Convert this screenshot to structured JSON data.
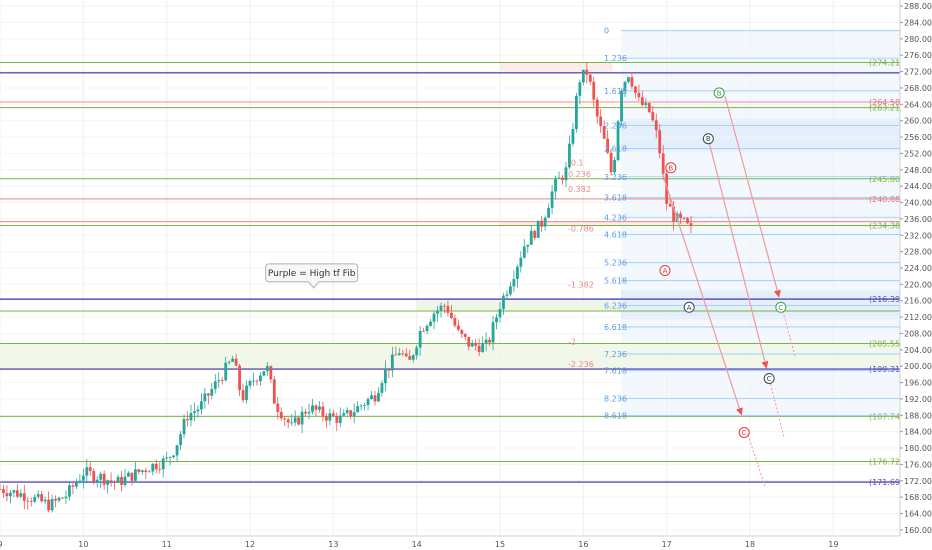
{
  "chart_data": {
    "type": "candlestick",
    "x_axis": {
      "ticks": [
        {
          "day": 9,
          "label": "9"
        },
        {
          "day": 10,
          "label": "10"
        },
        {
          "day": 11,
          "label": "11"
        },
        {
          "day": 12,
          "label": "12"
        },
        {
          "day": 13,
          "label": "13"
        },
        {
          "day": 14,
          "label": "14"
        },
        {
          "day": 15,
          "label": "15"
        },
        {
          "day": 16,
          "label": "16"
        },
        {
          "day": 17,
          "label": "17"
        },
        {
          "day": 18,
          "label": "18"
        },
        {
          "day": 19,
          "label": "19"
        }
      ],
      "range": [
        9,
        19.8
      ]
    },
    "y_axis": {
      "ticks": [
        "160.00",
        "164.00",
        "168.00",
        "172.00",
        "176.00",
        "180.00",
        "184.00",
        "188.00",
        "192.00",
        "196.00",
        "200.00",
        "204.00",
        "208.00",
        "212.00",
        "216.00",
        "220.00",
        "224.00",
        "228.00",
        "232.00",
        "236.00",
        "240.00",
        "244.00",
        "248.00",
        "252.00",
        "256.00",
        "260.00",
        "264.00",
        "268.00",
        "272.00",
        "276.00",
        "280.00",
        "284.00",
        "288.00"
      ],
      "range": [
        158.5,
        289.5
      ]
    },
    "price_path": [
      [
        9.0,
        170.0
      ],
      [
        9.3,
        168.5
      ],
      [
        9.6,
        166.0
      ],
      [
        9.8,
        168.5
      ],
      [
        10.0,
        174.0
      ],
      [
        10.2,
        173.0
      ],
      [
        10.4,
        171.5
      ],
      [
        10.6,
        173.5
      ],
      [
        10.8,
        175.5
      ],
      [
        11.0,
        177.0
      ],
      [
        11.1,
        180.0
      ],
      [
        11.25,
        188.0
      ],
      [
        11.4,
        190.0
      ],
      [
        11.6,
        196.0
      ],
      [
        11.8,
        202.0
      ],
      [
        11.9,
        192.0
      ],
      [
        12.05,
        197.0
      ],
      [
        12.2,
        200.0
      ],
      [
        12.3,
        191.0
      ],
      [
        12.5,
        185.0
      ],
      [
        12.7,
        190.0
      ],
      [
        12.9,
        188.0
      ],
      [
        13.1,
        187.0
      ],
      [
        13.3,
        190.0
      ],
      [
        13.5,
        193.0
      ],
      [
        13.6,
        198.0
      ],
      [
        13.8,
        204.0
      ],
      [
        13.9,
        200.0
      ],
      [
        14.05,
        209.0
      ],
      [
        14.2,
        213.0
      ],
      [
        14.35,
        215.0
      ],
      [
        14.5,
        208.0
      ],
      [
        14.65,
        205.0
      ],
      [
        14.85,
        205.0
      ],
      [
        15.0,
        215.0
      ],
      [
        15.15,
        222.0
      ],
      [
        15.3,
        230.0
      ],
      [
        15.5,
        235.0
      ],
      [
        15.65,
        244.0
      ],
      [
        15.8,
        248.0
      ],
      [
        15.95,
        270.0
      ],
      [
        16.05,
        272.0
      ],
      [
        16.15,
        262.0
      ],
      [
        16.25,
        255.0
      ],
      [
        16.35,
        246.0
      ],
      [
        16.45,
        268.0
      ],
      [
        16.55,
        272.0
      ],
      [
        16.65,
        265.0
      ],
      [
        16.8,
        262.0
      ],
      [
        16.9,
        255.0
      ],
      [
        17.0,
        240.0
      ],
      [
        17.1,
        236.0
      ],
      [
        17.2,
        235.0
      ],
      [
        17.3,
        233.0
      ]
    ],
    "purple_levels": [
      {
        "price": 271.7
      },
      {
        "price": 216.39,
        "label": "(216.39)"
      },
      {
        "price": 199.31,
        "label": "(199.31)"
      },
      {
        "price": 171.69,
        "label": "(171.69)"
      }
    ],
    "green_levels": [
      {
        "price": 274.21,
        "label": "(274.21)"
      },
      {
        "price": 263.21,
        "label": "(263.21)"
      },
      {
        "price": 245.8,
        "label": "(245.80)"
      },
      {
        "price": 234.38,
        "label": "(234.38)"
      },
      {
        "price": 213.5
      },
      {
        "price": 205.55,
        "label": "(205.55)"
      },
      {
        "price": 187.74,
        "label": "(187.74)"
      },
      {
        "price": 176.72,
        "label": "(176.72)"
      }
    ],
    "red_levels": [
      {
        "price": 264.58,
        "label": "(264.58)"
      },
      {
        "price": 240.88,
        "label": "(240.88)"
      },
      {
        "price": 235.32
      }
    ],
    "fib_labels_blue": [
      {
        "ratio": "0",
        "price": 282.0
      },
      {
        "ratio": "1.236",
        "price": 275.3
      },
      {
        "ratio": "1.618",
        "price": 267.3
      },
      {
        "ratio": "2.236",
        "price": 258.8
      },
      {
        "ratio": "2.618",
        "price": 253.2
      },
      {
        "ratio": "3.236",
        "price": 246.3
      },
      {
        "ratio": "3.618",
        "price": 241.2
      },
      {
        "ratio": "4.236",
        "price": 236.4
      },
      {
        "ratio": "4.618",
        "price": 232.2
      },
      {
        "ratio": "5.236",
        "price": 225.3
      },
      {
        "ratio": "5.618",
        "price": 220.9
      },
      {
        "ratio": "6.236",
        "price": 214.8
      },
      {
        "ratio": "6.618",
        "price": 209.6
      },
      {
        "ratio": "7.236",
        "price": 203.0
      },
      {
        "ratio": "7.618",
        "price": 198.9
      },
      {
        "ratio": "8.236",
        "price": 192.1
      },
      {
        "ratio": "8.618",
        "price": 187.9
      }
    ],
    "fib_labels_red": [
      {
        "ratio": "0.236",
        "price": 247.0
      },
      {
        "ratio": "0.382",
        "price": 243.3
      },
      {
        "ratio": "-0.786",
        "price": 233.7
      },
      {
        "ratio": "-1.382",
        "price": 220.0
      },
      {
        "ratio": "-2",
        "price": 206.0
      },
      {
        "ratio": "-2.236",
        "price": 200.5
      },
      {
        "ratio": "-0.1",
        "price": 249.8
      }
    ],
    "wave_labels": [
      {
        "text": "B",
        "color": "#43a047",
        "day": 17.63,
        "price": 266.8
      },
      {
        "text": "B",
        "color": "#37474f",
        "day": 17.5,
        "price": 255.6
      },
      {
        "text": "B",
        "color": "#e53935",
        "day": 17.05,
        "price": 248.5
      },
      {
        "text": "A",
        "color": "#e53935",
        "day": 16.98,
        "price": 223.4
      },
      {
        "text": "A",
        "color": "#37474f",
        "day": 17.27,
        "price": 214.4
      },
      {
        "text": "C",
        "color": "#43a047",
        "day": 18.37,
        "price": 214.4
      },
      {
        "text": "C",
        "color": "#37474f",
        "day": 18.23,
        "price": 197.0
      },
      {
        "text": "C",
        "color": "#e53935",
        "day": 17.93,
        "price": 183.8
      }
    ],
    "projections": [
      {
        "color": "#ef9a9a",
        "from": [
          17.7,
          266.0
        ],
        "to": [
          18.35,
          216.8
        ]
      },
      {
        "color": "#ef9a9a",
        "from": [
          17.5,
          255.5
        ],
        "to": [
          18.2,
          199.4
        ]
      },
      {
        "color": "#ef9a9a",
        "from": [
          16.95,
          247.0
        ],
        "to": [
          17.9,
          188.0
        ]
      }
    ],
    "callout": {
      "text": "Purple = High tf Fib",
      "day": 12.74,
      "price": 222.8
    }
  },
  "colors": {
    "purple": "#6a5acd",
    "green": "#8bc34a",
    "red": "#e57373",
    "blue_fib": "#64b5f6",
    "candle_up": "#26a69a",
    "candle_down": "#ef5350"
  }
}
